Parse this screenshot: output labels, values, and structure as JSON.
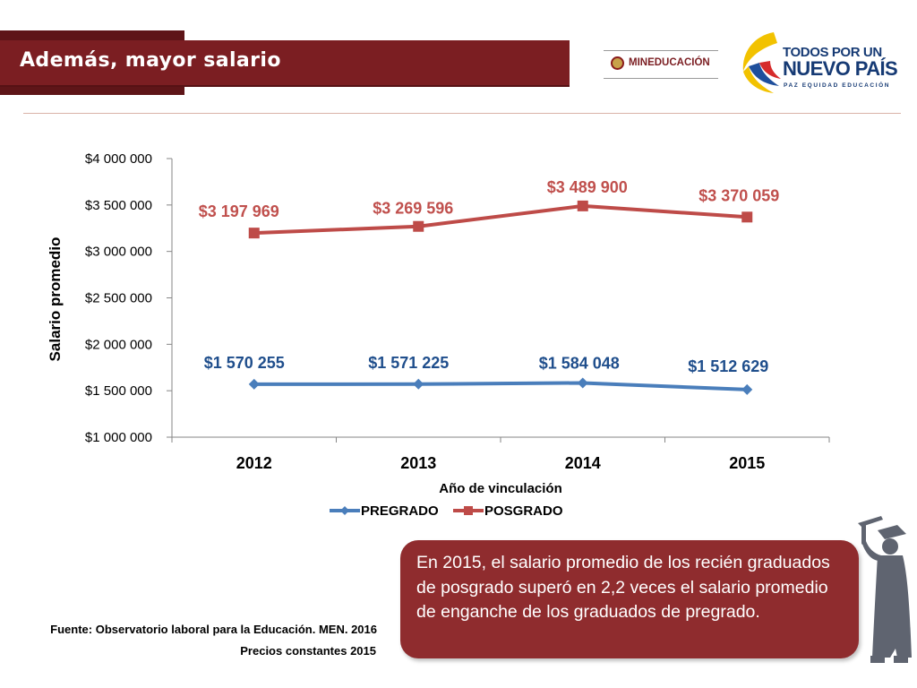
{
  "header": {
    "title": "Además, mayor salario",
    "mineducacion_logo": "MINEDUCACIÓN",
    "nuevo_pais_logo": {
      "line1": "TODOS POR UN",
      "line2": "NUEVO PAÍS",
      "line3": "PAZ  EQUIDAD  EDUCACIÓN"
    }
  },
  "chart_data": {
    "type": "line",
    "xlabel": "Año de vinculación",
    "ylabel": "Salario promedio",
    "categories": [
      "2012",
      "2013",
      "2014",
      "2015"
    ],
    "ylim": [
      1000000,
      4000000
    ],
    "yticks": [
      "$1 000 000",
      "$1 500 000",
      "$2 000 000",
      "$2 500 000",
      "$3 000 000",
      "$3 500 000",
      "$4 000 000"
    ],
    "grid": false,
    "legend_position": "bottom",
    "series": [
      {
        "name": "PREGRADO",
        "values": [
          1570255,
          1571225,
          1584048,
          1512629
        ],
        "labels": [
          "$1 570 255",
          "$1 571 225",
          "$1 584 048",
          "$1 512 629"
        ],
        "color": "#4a7ebb",
        "label_color": "#1f4e8c",
        "marker": "diamond"
      },
      {
        "name": "POSGRADO",
        "values": [
          3197969,
          3269596,
          3489900,
          3370059
        ],
        "labels": [
          "$3 197 969",
          "$3 269 596",
          "$3 489 900",
          "$3 370 059"
        ],
        "color": "#be4b48",
        "label_color": "#c0504d",
        "marker": "square"
      }
    ]
  },
  "callout": {
    "text": "En 2015, el salario promedio de los recién graduados de posgrado superó en 2,2 veces el salario promedio de enganche de los graduados de pregrado."
  },
  "source": {
    "line1": "Fuente: Observatorio laboral para la Educación. MEN. 2016",
    "line2": "Precios constantes  2015"
  },
  "colors": {
    "title_bar": "#7b1e22",
    "callout_bg": "#8f2c2e",
    "figure": "#5f6470"
  }
}
